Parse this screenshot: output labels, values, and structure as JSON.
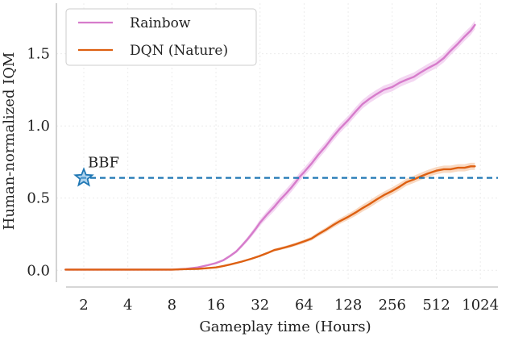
{
  "chart_data": {
    "type": "line",
    "xlabel": "Gameplay time (Hours)",
    "ylabel": "Human-normalized IQM",
    "x_scale": "log2",
    "xlim": [
      1.3,
      1350
    ],
    "ylim": [
      -0.06,
      1.85
    ],
    "x_ticks": [
      2,
      4,
      8,
      16,
      32,
      64,
      128,
      256,
      512,
      1024
    ],
    "x_tick_labels": [
      "2",
      "4",
      "8",
      "16",
      "32",
      "64",
      "128",
      "256",
      "512",
      "1024"
    ],
    "y_ticks": [
      0.0,
      0.5,
      1.0,
      1.5
    ],
    "y_tick_labels": [
      "0.0",
      "0.5",
      "1.0",
      "1.5"
    ],
    "grid": true,
    "legend_position": "top-left",
    "series": [
      {
        "name": "Rainbow",
        "color": "#d67ccb",
        "band_color": "#f0c6ec",
        "x": [
          1.5,
          4,
          8,
          10,
          12,
          14,
          16,
          18,
          20,
          22,
          24,
          26,
          28,
          30,
          32,
          36,
          40,
          44,
          48,
          52,
          56,
          60,
          64,
          72,
          80,
          90,
          100,
          112,
          128,
          144,
          160,
          180,
          200,
          224,
          256,
          288,
          320,
          360,
          400,
          448,
          512,
          576,
          640,
          720,
          800,
          880,
          940
        ],
        "y": [
          0.005,
          0.005,
          0.005,
          0.01,
          0.02,
          0.035,
          0.05,
          0.07,
          0.1,
          0.13,
          0.17,
          0.21,
          0.25,
          0.29,
          0.33,
          0.39,
          0.44,
          0.49,
          0.53,
          0.57,
          0.61,
          0.65,
          0.68,
          0.74,
          0.8,
          0.86,
          0.92,
          0.98,
          1.04,
          1.1,
          1.15,
          1.19,
          1.22,
          1.25,
          1.27,
          1.3,
          1.32,
          1.34,
          1.37,
          1.4,
          1.43,
          1.47,
          1.52,
          1.57,
          1.62,
          1.66,
          1.7
        ],
        "band": 0.03
      },
      {
        "name": "DQN (Nature)",
        "color": "#dd6012",
        "band_color": "#f6c9a8",
        "x": [
          1.5,
          4,
          8,
          10,
          12,
          14,
          16,
          18,
          20,
          24,
          28,
          32,
          36,
          40,
          44,
          48,
          52,
          56,
          64,
          72,
          80,
          90,
          100,
          112,
          128,
          144,
          160,
          180,
          200,
          224,
          256,
          288,
          320,
          360,
          400,
          448,
          512,
          576,
          640,
          720,
          800,
          880,
          940
        ],
        "y": [
          0.005,
          0.005,
          0.005,
          0.008,
          0.01,
          0.015,
          0.02,
          0.03,
          0.04,
          0.06,
          0.08,
          0.1,
          0.12,
          0.14,
          0.15,
          0.16,
          0.17,
          0.18,
          0.2,
          0.22,
          0.25,
          0.28,
          0.31,
          0.34,
          0.37,
          0.4,
          0.43,
          0.46,
          0.49,
          0.52,
          0.55,
          0.58,
          0.61,
          0.63,
          0.65,
          0.67,
          0.69,
          0.7,
          0.7,
          0.71,
          0.71,
          0.72,
          0.72
        ],
        "band": 0.025
      }
    ],
    "reference_line": {
      "y": 0.64,
      "color": "#1f77b4",
      "style": "dashed"
    },
    "annotation": {
      "label": "BBF",
      "x": 2,
      "y": 0.64,
      "marker": "star",
      "color": "#1f77b4"
    }
  }
}
